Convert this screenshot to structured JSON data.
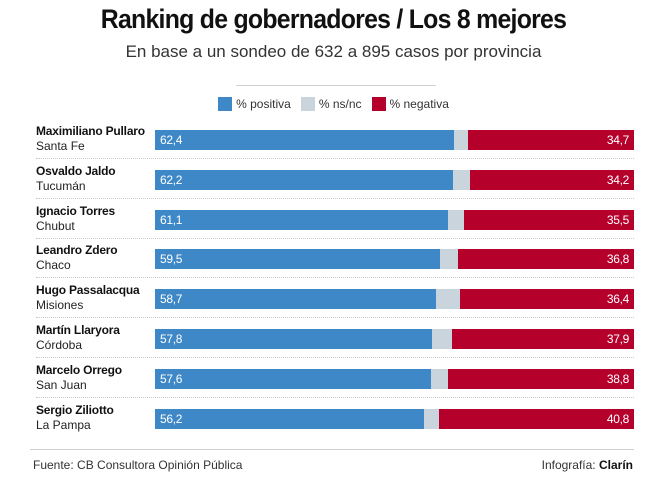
{
  "header": {
    "title": "Ranking de gobernadores / Los 8 mejores",
    "subtitle": "En base a un sondeo de 632 a 895 casos por provincia"
  },
  "legend": [
    {
      "label": "% positiva",
      "color": "#3e88c8"
    },
    {
      "label": "% ns/nc",
      "color": "#c9d4dc"
    },
    {
      "label": "% negativa",
      "color": "#b5002c"
    }
  ],
  "footer": {
    "source": "Fuente: CB Consultora Opinión Pública",
    "credit_prefix": "Infografía: ",
    "credit_brand": "Clarín"
  },
  "chart_data": {
    "type": "bar",
    "orientation": "horizontal-stacked-100",
    "title": "Ranking de gobernadores / Los 8 mejores",
    "subtitle": "En base a un sondeo de 632 a 895 casos por provincia",
    "xlabel": "",
    "ylabel": "",
    "xlim": [
      0,
      100
    ],
    "grid": false,
    "legend_position": "top-center",
    "categories": [
      {
        "name": "Maximiliano Pullaro",
        "province": "Santa Fe"
      },
      {
        "name": "Osvaldo Jaldo",
        "province": "Tucumán"
      },
      {
        "name": "Ignacio Torres",
        "province": "Chubut"
      },
      {
        "name": "Leandro Zdero",
        "province": "Chaco"
      },
      {
        "name": "Hugo Passalacqua",
        "province": "Misiones"
      },
      {
        "name": "Martín Llaryora",
        "province": "Córdoba"
      },
      {
        "name": "Marcelo Orrego",
        "province": "San Juan"
      },
      {
        "name": "Sergio Ziliotto",
        "province": "La Pampa"
      }
    ],
    "series": [
      {
        "name": "% positiva",
        "color": "#3e88c8",
        "values": [
          62.4,
          62.2,
          61.1,
          59.5,
          58.7,
          57.8,
          57.6,
          56.2
        ],
        "labels": [
          "62,4",
          "62,2",
          "61,1",
          "59,5",
          "58,7",
          "57,8",
          "57,6",
          "56,2"
        ]
      },
      {
        "name": "% ns/nc",
        "color": "#c9d4dc",
        "values": [
          2.9,
          3.6,
          3.4,
          3.7,
          4.9,
          4.3,
          3.6,
          3.0
        ],
        "labels": []
      },
      {
        "name": "% negativa",
        "color": "#b5002c",
        "values": [
          34.7,
          34.2,
          35.5,
          36.8,
          36.4,
          37.9,
          38.8,
          40.8
        ],
        "labels": [
          "34,7",
          "34,2",
          "35,5",
          "36,8",
          "36,4",
          "37,9",
          "38,8",
          "40,8"
        ]
      }
    ]
  }
}
